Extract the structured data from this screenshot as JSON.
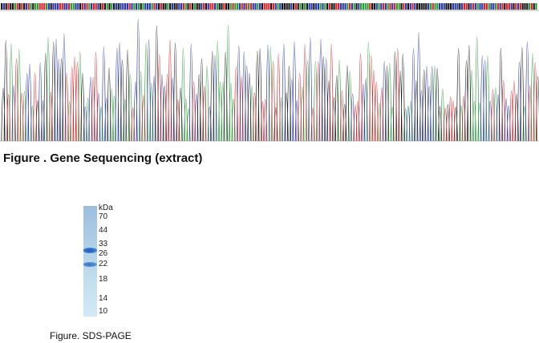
{
  "sequencing": {
    "caption": "Figure . Gene Sequencing (extract)",
    "trace_colors": {
      "A": "#2e9e3c",
      "C": "#2c3ca6",
      "G": "#1a1a1a",
      "T": "#d8262a"
    }
  },
  "sds_page": {
    "unit": "kDa",
    "markers": [
      "70",
      "44",
      "33",
      "26",
      "22",
      "18",
      "14",
      "10"
    ],
    "caption": "Figure. SDS-PAGE"
  }
}
